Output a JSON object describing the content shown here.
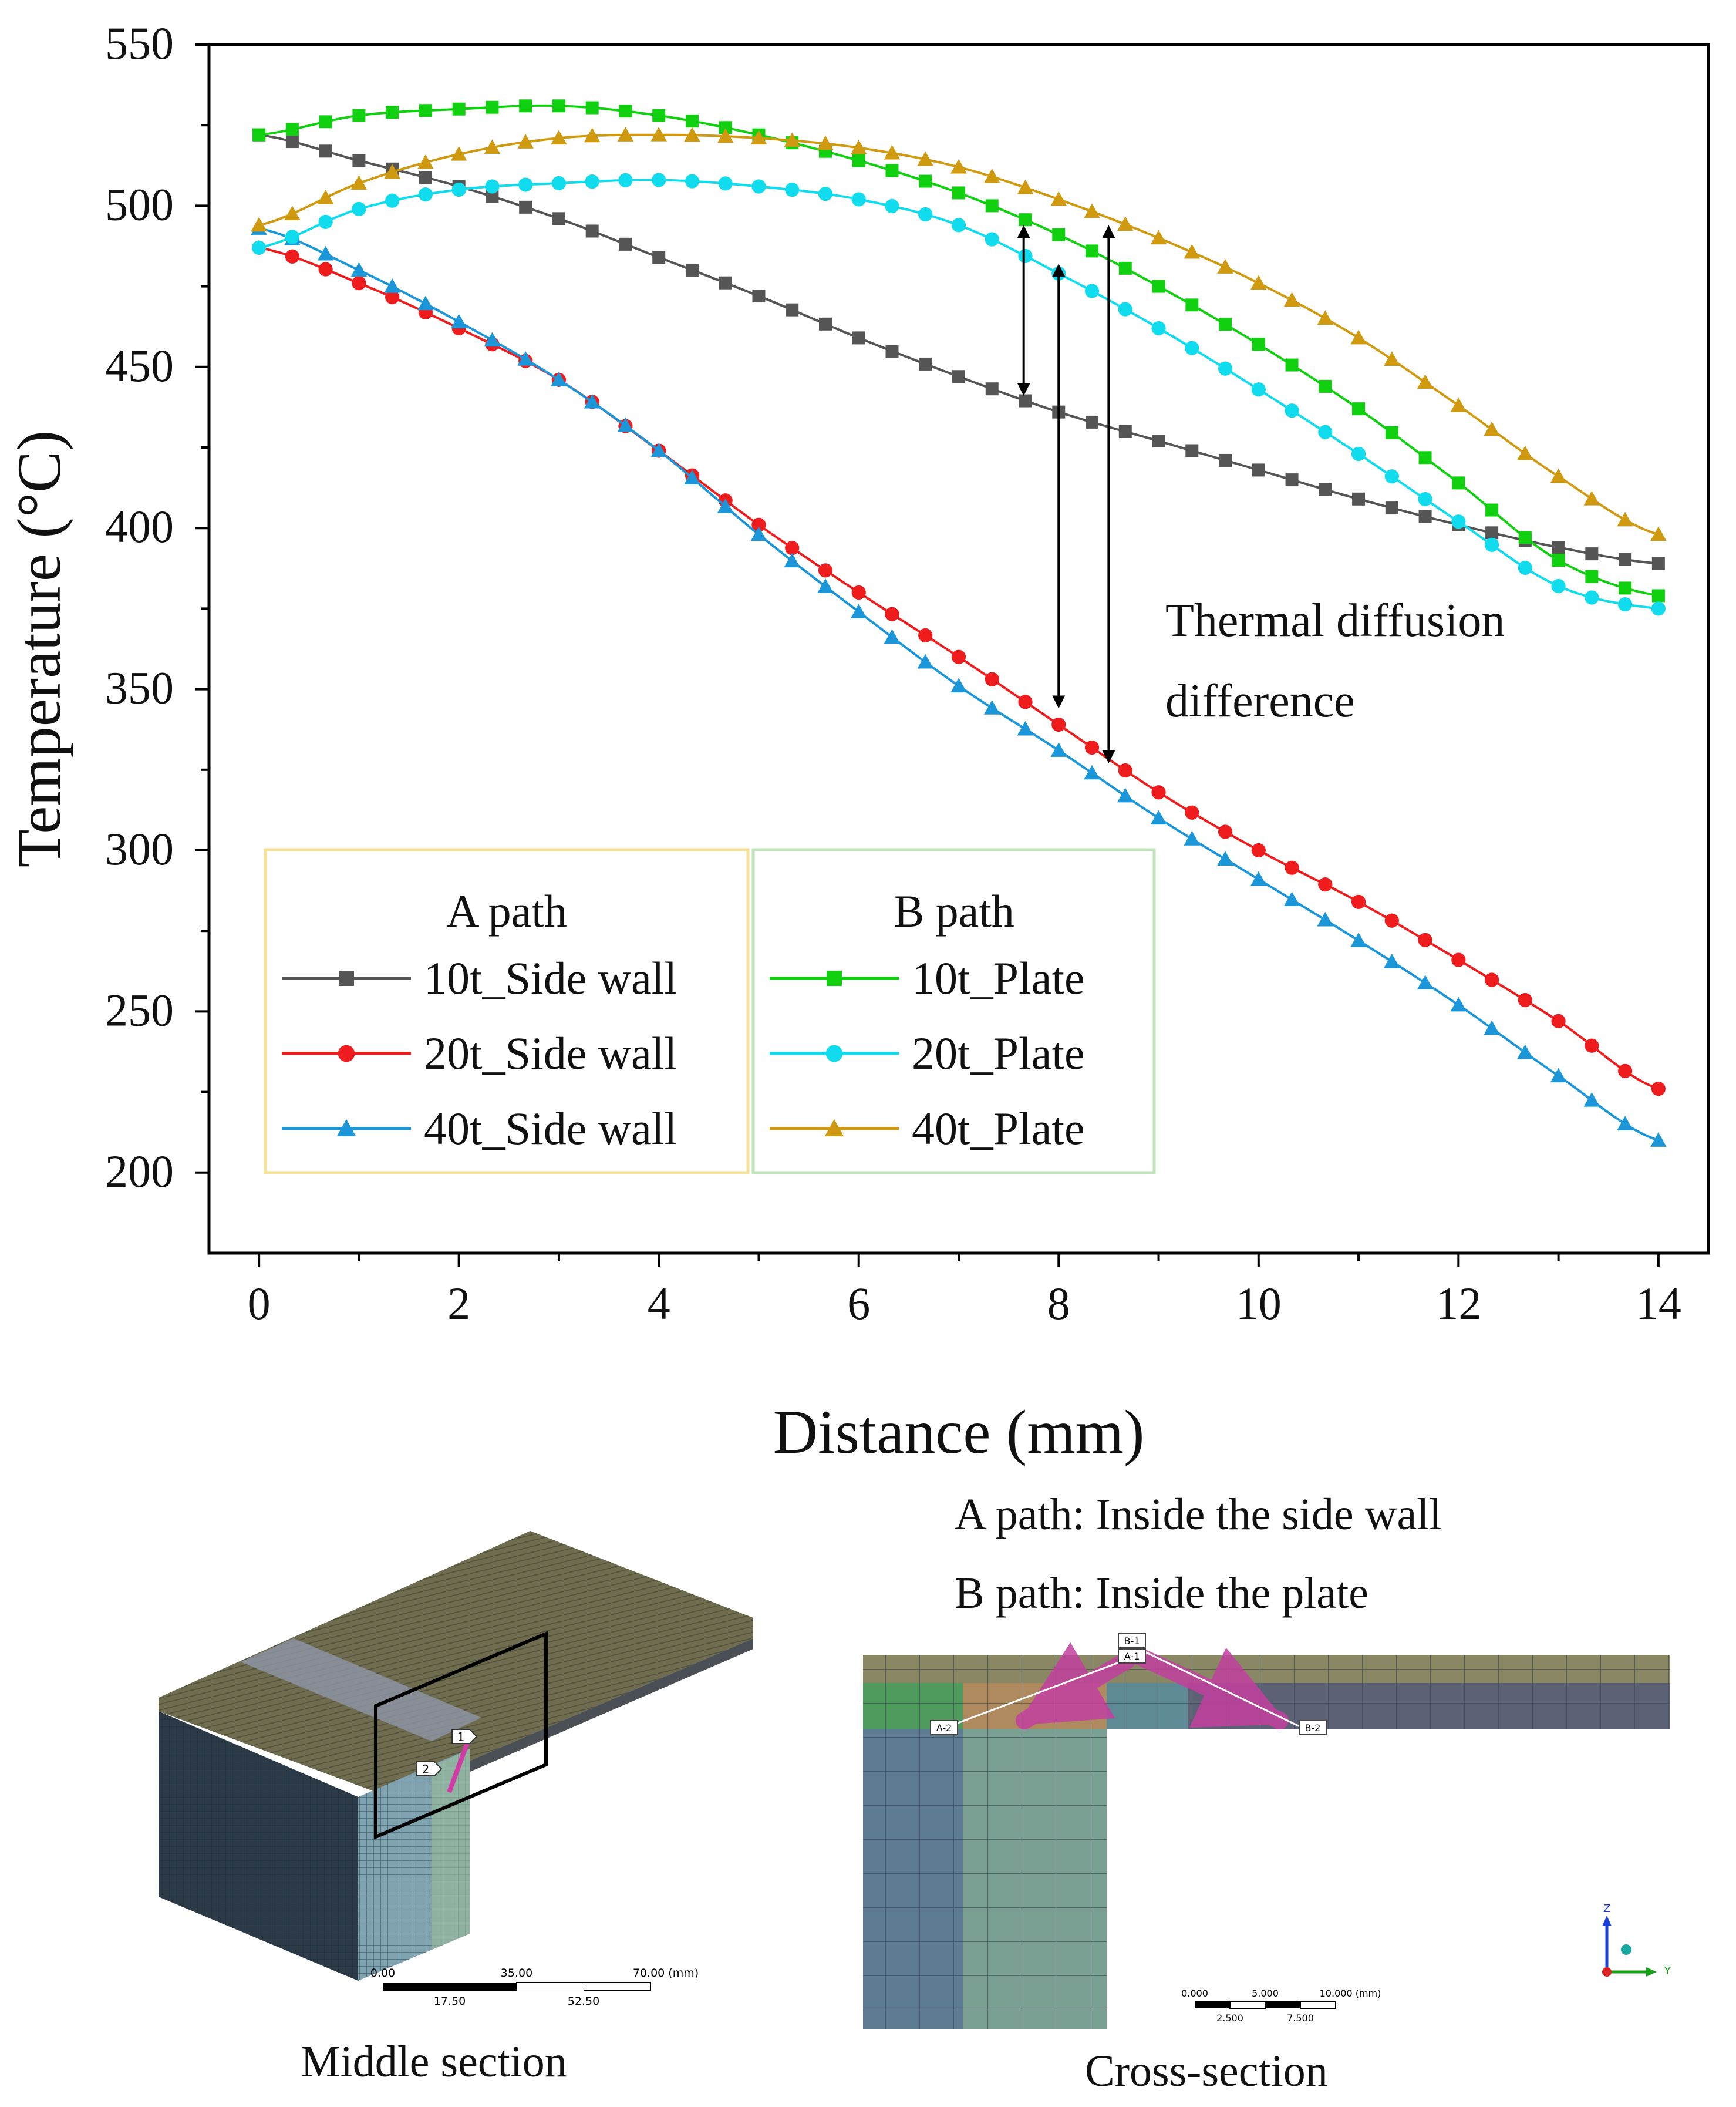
{
  "chart_data": {
    "type": "line",
    "xlabel": "Distance (mm)",
    "ylabel": "Temperature (°C)",
    "xlim": [
      -0.5,
      14.5
    ],
    "ylim": [
      175,
      550
    ],
    "xticks": [
      0,
      2,
      4,
      6,
      8,
      10,
      12,
      14
    ],
    "yticks": [
      200,
      250,
      300,
      350,
      400,
      450,
      500,
      550
    ],
    "grid": false,
    "legend_groups": [
      {
        "title": "A path",
        "series": [
          "10t_Side wall",
          "20t_Side wall",
          "40t_Side wall"
        ]
      },
      {
        "title": "B path",
        "series": [
          "10t_Plate",
          "20t_Plate",
          "40t_Plate"
        ]
      }
    ],
    "annotation": {
      "lines": [
        "Thermal diffusion",
        "difference"
      ],
      "arrows": [
        {
          "x": 7.65,
          "y_from": 441,
          "y_to": 494
        },
        {
          "x": 8.0,
          "y_from": 344,
          "y_to": 482
        },
        {
          "x": 8.5,
          "y_from": 327,
          "y_to": 494
        }
      ]
    },
    "series": [
      {
        "name": "10t_Side wall",
        "color": "#555555",
        "marker": "square",
        "x": [
          0,
          1,
          2,
          3,
          4,
          5,
          6,
          7,
          8,
          9,
          10,
          11,
          12,
          13,
          14
        ],
        "values": [
          522,
          514,
          506,
          496,
          484,
          472,
          459,
          447,
          436,
          427,
          418,
          409,
          401,
          394,
          389
        ]
      },
      {
        "name": "20t_Side wall",
        "color": "#ee1c1c",
        "marker": "circle",
        "x": [
          0,
          1,
          2,
          3,
          4,
          5,
          6,
          7,
          8,
          9,
          10,
          11,
          12,
          13,
          14
        ],
        "values": [
          487,
          476,
          462,
          446,
          424,
          401,
          380,
          360,
          339,
          318,
          300,
          284,
          266,
          247,
          226
        ]
      },
      {
        "name": "40t_Side wall",
        "color": "#1b96d8",
        "marker": "triangle",
        "x": [
          0,
          1,
          2,
          3,
          4,
          5,
          6,
          7,
          8,
          9,
          10,
          11,
          12,
          13,
          14
        ],
        "values": [
          493,
          480,
          464,
          446,
          424,
          398,
          374,
          351,
          331,
          310,
          291,
          272,
          252,
          230,
          210
        ]
      },
      {
        "name": "10t_Plate",
        "color": "#10d010",
        "marker": "square",
        "x": [
          0,
          1,
          2,
          3,
          4,
          5,
          6,
          7,
          8,
          9,
          10,
          11,
          12,
          13,
          14
        ],
        "values": [
          522,
          528,
          530,
          531,
          528,
          522,
          514,
          504,
          491,
          475,
          457,
          437,
          414,
          390,
          379
        ]
      },
      {
        "name": "20t_Plate",
        "color": "#10dcee",
        "marker": "circle",
        "x": [
          0,
          1,
          2,
          3,
          4,
          5,
          6,
          7,
          8,
          9,
          10,
          11,
          12,
          13,
          14
        ],
        "values": [
          487,
          499,
          505,
          507,
          508,
          506,
          502,
          494,
          479,
          462,
          443,
          423,
          402,
          382,
          375
        ]
      },
      {
        "name": "40t_Plate",
        "color": "#d09a10",
        "marker": "triangle",
        "x": [
          0,
          1,
          2,
          3,
          4,
          5,
          6,
          7,
          8,
          9,
          10,
          11,
          12,
          13,
          14
        ],
        "values": [
          494,
          507,
          516,
          521,
          522,
          521,
          518,
          512,
          502,
          490,
          476,
          459,
          438,
          416,
          398
        ]
      }
    ]
  },
  "lower": {
    "path_a_text": "A path: Inside the side wall",
    "path_b_text": "B path: Inside the plate",
    "middle_caption": "Middle section",
    "cross_caption": "Cross-section",
    "middle_labels": [
      "1",
      "2"
    ],
    "middle_scale": {
      "top": [
        "0.00",
        "35.00",
        "70.00 (mm)"
      ],
      "bottom": [
        "17.50",
        "52.50"
      ]
    },
    "cross_labels": [
      "B-1",
      "A-1",
      "A-2",
      "B-2"
    ],
    "cross_scale": {
      "top": [
        "0.000",
        "5.000",
        "10.000 (mm)"
      ],
      "bottom": [
        "2.500",
        "7.500"
      ]
    },
    "axis_triad": {
      "z": "Z",
      "y": "Y"
    }
  }
}
